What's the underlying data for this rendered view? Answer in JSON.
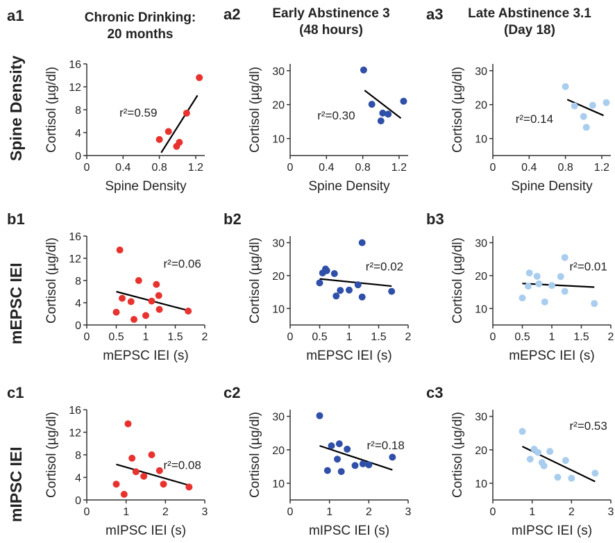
{
  "columns": [
    {
      "label": "a1",
      "title_line1": "Chronic Drinking:",
      "title_line2": "20 months"
    },
    {
      "label": "a2",
      "title_line1": "Early Abstinence 3",
      "title_line2": "(48 hours)"
    },
    {
      "label": "a3",
      "title_line1": "Late Abstinence 3.1",
      "title_line2": "(Day 18)"
    }
  ],
  "rows": [
    {
      "name": "Spine Density",
      "labels": [
        "a1",
        "a2",
        "a3"
      ]
    },
    {
      "name": "mEPSC IEI",
      "labels": [
        "b1",
        "b2",
        "b3"
      ]
    },
    {
      "name": "mIPSC IEI",
      "labels": [
        "c1",
        "c2",
        "c3"
      ]
    }
  ],
  "colors": {
    "chronic": "#e8322e",
    "early": "#2f4fa8",
    "late": "#a9cdee",
    "fit": "#000000"
  },
  "chart_data": [
    {
      "id": "a1",
      "type": "scatter",
      "xlabel": "Spine Density",
      "ylabel": "Cortisol (µg/dl)",
      "color": "chronic",
      "xlim": [
        0,
        1.3
      ],
      "xticks": [
        0,
        0.4,
        0.8,
        1.2
      ],
      "xticklabels": [
        "0",
        "0.4",
        "0.8",
        "1.2"
      ],
      "ylim": [
        0,
        16
      ],
      "yticks": [
        0,
        4,
        8,
        12,
        16
      ],
      "points": [
        [
          0.8,
          2.8
        ],
        [
          0.9,
          4.2
        ],
        [
          0.99,
          1.6
        ],
        [
          1.02,
          2.3
        ],
        [
          1.1,
          7.4
        ],
        [
          1.24,
          13.6
        ]
      ],
      "fit": [
        [
          0.82,
          0.5
        ],
        [
          1.22,
          10.5
        ]
      ],
      "r2_text": "r²=0.59",
      "r2_pos": [
        0.36,
        6.8
      ]
    },
    {
      "id": "a2",
      "type": "scatter",
      "xlabel": "Spine Density",
      "ylabel": "Cortisol (µg/dl)",
      "color": "early",
      "xlim": [
        0,
        1.3
      ],
      "xticks": [
        0,
        0.4,
        0.8,
        1.2
      ],
      "xticklabels": [
        "0",
        "0.4",
        "0.8",
        "1.2"
      ],
      "ylim": [
        5,
        32
      ],
      "yticks": [
        10,
        20,
        30
      ],
      "points": [
        [
          0.81,
          30.2
        ],
        [
          0.9,
          20.1
        ],
        [
          1.0,
          15.2
        ],
        [
          1.02,
          17.5
        ],
        [
          1.08,
          17.2
        ],
        [
          1.25,
          21.0
        ]
      ],
      "fit": [
        [
          0.82,
          24.2
        ],
        [
          1.22,
          16.0
        ]
      ],
      "r2_text": "r²=0.30",
      "r2_pos": [
        0.3,
        15.6
      ]
    },
    {
      "id": "a3",
      "type": "scatter",
      "xlabel": "Spine Density",
      "ylabel": "Cortisol (µg/dl)",
      "color": "late",
      "xlim": [
        0,
        1.3
      ],
      "xticks": [
        0,
        0.4,
        0.8,
        1.2
      ],
      "xticklabels": [
        "0",
        "0.4",
        "0.8",
        "1.2"
      ],
      "ylim": [
        5,
        32
      ],
      "yticks": [
        10,
        20,
        30
      ],
      "points": [
        [
          0.8,
          25.3
        ],
        [
          0.9,
          19.6
        ],
        [
          1.0,
          16.5
        ],
        [
          1.03,
          13.3
        ],
        [
          1.1,
          19.8
        ],
        [
          1.25,
          20.6
        ]
      ],
      "fit": [
        [
          0.82,
          21.5
        ],
        [
          1.22,
          16.8
        ]
      ],
      "r2_text": "r²=0.14",
      "r2_pos": [
        0.25,
        14.6
      ]
    },
    {
      "id": "b1",
      "type": "scatter",
      "xlabel": "mEPSC IEI (s)",
      "ylabel": "Cortisol (µg/dl)",
      "color": "chronic",
      "xlim": [
        0,
        2
      ],
      "xticks": [
        0,
        0.5,
        1,
        1.5,
        2
      ],
      "xticklabels": [
        "0",
        "0.5",
        "1",
        "1.5",
        "2"
      ],
      "ylim": [
        0,
        16
      ],
      "yticks": [
        0,
        4,
        8,
        12,
        16
      ],
      "points": [
        [
          0.5,
          2.3
        ],
        [
          0.56,
          13.5
        ],
        [
          0.6,
          4.8
        ],
        [
          0.75,
          4.2
        ],
        [
          0.8,
          1.0
        ],
        [
          0.88,
          8.0
        ],
        [
          1.0,
          1.7
        ],
        [
          1.1,
          4.3
        ],
        [
          1.18,
          7.3
        ],
        [
          1.22,
          5.3
        ],
        [
          1.23,
          2.8
        ],
        [
          1.72,
          2.5
        ]
      ],
      "fit": [
        [
          0.5,
          6.0
        ],
        [
          1.72,
          2.6
        ]
      ],
      "r2_text": "r²=0.06",
      "r2_pos": [
        1.3,
        10.3
      ]
    },
    {
      "id": "b2",
      "type": "scatter",
      "xlabel": "mEPSC IEI (s)",
      "ylabel": "Cortisol (µg/dl)",
      "color": "early",
      "xlim": [
        0,
        2
      ],
      "xticks": [
        0,
        0.5,
        1,
        1.5,
        2
      ],
      "xticklabels": [
        "0",
        "0.5",
        "1",
        "1.5",
        "2"
      ],
      "ylim": [
        5,
        32
      ],
      "yticks": [
        10,
        20,
        30
      ],
      "points": [
        [
          0.5,
          17.8
        ],
        [
          0.55,
          20.8
        ],
        [
          0.6,
          22.0
        ],
        [
          0.62,
          21.5
        ],
        [
          0.75,
          20.6
        ],
        [
          0.78,
          13.8
        ],
        [
          0.85,
          15.5
        ],
        [
          1.0,
          15.6
        ],
        [
          1.15,
          17.2
        ],
        [
          1.22,
          13.5
        ],
        [
          1.22,
          30.0
        ],
        [
          1.72,
          15.2
        ]
      ],
      "fit": [
        [
          0.5,
          19.0
        ],
        [
          1.72,
          16.8
        ]
      ],
      "r2_text": "r²=0.02",
      "r2_pos": [
        1.28,
        21.6
      ]
    },
    {
      "id": "b3",
      "type": "scatter",
      "xlabel": "mEPSC IEI (s)",
      "ylabel": "Cortisol (µg/dl)",
      "color": "late",
      "xlim": [
        0,
        2
      ],
      "xticks": [
        0,
        0.5,
        1,
        1.5,
        2
      ],
      "xticklabels": [
        "0",
        "0.5",
        "1",
        "1.5",
        "2"
      ],
      "ylim": [
        5,
        32
      ],
      "yticks": [
        10,
        20,
        30
      ],
      "points": [
        [
          0.5,
          13.2
        ],
        [
          0.6,
          16.8
        ],
        [
          0.62,
          20.8
        ],
        [
          0.75,
          19.8
        ],
        [
          0.78,
          17.5
        ],
        [
          0.88,
          12.0
        ],
        [
          1.0,
          17.0
        ],
        [
          1.15,
          19.7
        ],
        [
          1.22,
          25.5
        ],
        [
          1.22,
          15.2
        ],
        [
          1.72,
          11.5
        ]
      ],
      "fit": [
        [
          0.5,
          17.6
        ],
        [
          1.72,
          16.5
        ]
      ],
      "r2_text": "r²=0.01",
      "r2_pos": [
        1.3,
        21.6
      ]
    },
    {
      "id": "c1",
      "type": "scatter",
      "xlabel": "mIPSC IEI (s)",
      "ylabel": "Cortisol (µg/dl)",
      "color": "chronic",
      "xlim": [
        0,
        3
      ],
      "xticks": [
        0,
        1,
        2,
        3
      ],
      "xticklabels": [
        "0",
        "1",
        "2",
        "3"
      ],
      "ylim": [
        0,
        16
      ],
      "yticks": [
        0,
        4,
        8,
        12,
        16
      ],
      "points": [
        [
          0.75,
          2.8
        ],
        [
          0.95,
          1.0
        ],
        [
          1.05,
          13.5
        ],
        [
          1.15,
          7.4
        ],
        [
          1.25,
          5.0
        ],
        [
          1.45,
          4.2
        ],
        [
          1.65,
          8.0
        ],
        [
          1.85,
          5.2
        ],
        [
          1.95,
          2.8
        ],
        [
          2.6,
          2.3
        ]
      ],
      "fit": [
        [
          0.75,
          6.3
        ],
        [
          2.6,
          2.6
        ]
      ],
      "r2_text": "r²=0.08",
      "r2_pos": [
        1.95,
        5.5
      ]
    },
    {
      "id": "c2",
      "type": "scatter",
      "xlabel": "mIPSC IEI (s)",
      "ylabel": "Cortisol (µg/dl)",
      "color": "early",
      "xlim": [
        0,
        3
      ],
      "xticks": [
        0,
        1,
        2,
        3
      ],
      "xticklabels": [
        "0",
        "1",
        "2",
        "3"
      ],
      "ylim": [
        5,
        32
      ],
      "yticks": [
        10,
        20,
        30
      ],
      "points": [
        [
          0.75,
          30.2
        ],
        [
          0.95,
          13.8
        ],
        [
          1.05,
          21.2
        ],
        [
          1.2,
          17.2
        ],
        [
          1.25,
          21.8
        ],
        [
          1.3,
          13.5
        ],
        [
          1.45,
          20.2
        ],
        [
          1.65,
          15.3
        ],
        [
          1.85,
          15.8
        ],
        [
          2.0,
          15.5
        ],
        [
          2.6,
          17.8
        ]
      ],
      "fit": [
        [
          0.75,
          21.2
        ],
        [
          2.6,
          14.0
        ]
      ],
      "r2_text": "r²=0.18",
      "r2_pos": [
        1.95,
        20.2
      ]
    },
    {
      "id": "c3",
      "type": "scatter",
      "xlabel": "mIPSC IEI (s)",
      "ylabel": "Cortisol (µg/dl)",
      "color": "late",
      "xlim": [
        0,
        3
      ],
      "xticks": [
        0,
        1,
        2,
        3
      ],
      "xticklabels": [
        "0",
        "1",
        "2",
        "3"
      ],
      "ylim": [
        5,
        32
      ],
      "yticks": [
        10,
        20,
        30
      ],
      "points": [
        [
          0.75,
          25.5
        ],
        [
          0.95,
          17.2
        ],
        [
          1.05,
          20.2
        ],
        [
          1.15,
          19.2
        ],
        [
          1.25,
          16.2
        ],
        [
          1.3,
          15.2
        ],
        [
          1.45,
          19.5
        ],
        [
          1.65,
          11.8
        ],
        [
          1.85,
          16.8
        ],
        [
          2.0,
          11.5
        ],
        [
          2.6,
          13.0
        ]
      ],
      "fit": [
        [
          0.75,
          21.0
        ],
        [
          2.6,
          10.5
        ]
      ],
      "r2_text": "r²=0.53",
      "r2_pos": [
        1.95,
        26.0
      ]
    }
  ]
}
